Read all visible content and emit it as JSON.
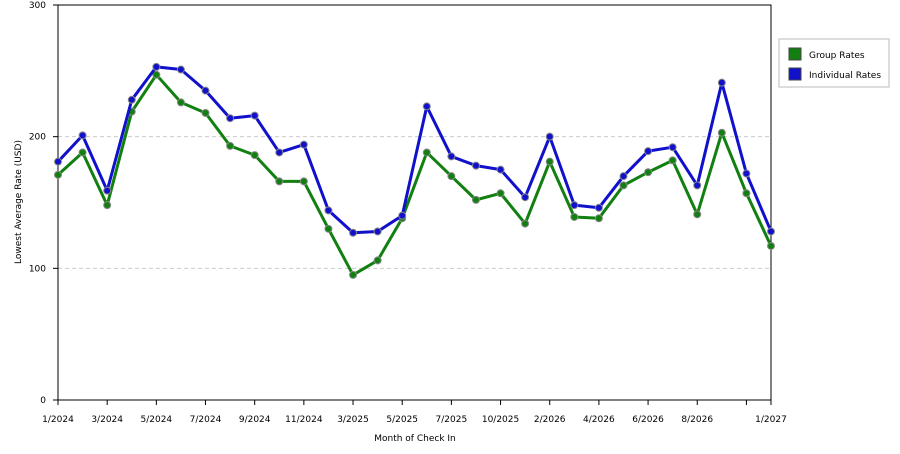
{
  "chart_data": {
    "type": "line",
    "x_label": "Month of Check In",
    "y_label": "Lowest Average Rate (USD)",
    "categories": [
      "1/2024",
      null,
      "3/2024",
      null,
      "5/2024",
      null,
      "7/2024",
      null,
      "9/2024",
      null,
      "11/2024",
      null,
      "3/2025",
      null,
      "5/2025",
      null,
      "7/2025",
      null,
      "10/2025",
      null,
      "2/2026",
      null,
      "4/2026",
      null,
      "6/2026",
      null,
      "8/2026",
      null,
      null,
      "1/2027"
    ],
    "series": [
      {
        "name": "Group Rates",
        "color": "#118011",
        "values": [
          171,
          188,
          148,
          219,
          247,
          226,
          218,
          193,
          186,
          166,
          166,
          130,
          95,
          106,
          138,
          188,
          170,
          152,
          157,
          134,
          181,
          139,
          138,
          163,
          173,
          182,
          141,
          203,
          157,
          117
        ]
      },
      {
        "name": "Individual Rates",
        "color": "#1111cc",
        "values": [
          181,
          201,
          159,
          228,
          253,
          251,
          235,
          214,
          216,
          188,
          194,
          144,
          127,
          128,
          140,
          223,
          185,
          178,
          175,
          154,
          200,
          148,
          146,
          170,
          189,
          192,
          163,
          241,
          172,
          128
        ]
      }
    ],
    "ylim": [
      0,
      300
    ],
    "yticks": [
      0,
      100,
      200,
      300
    ],
    "grid": true,
    "legend": "right"
  }
}
